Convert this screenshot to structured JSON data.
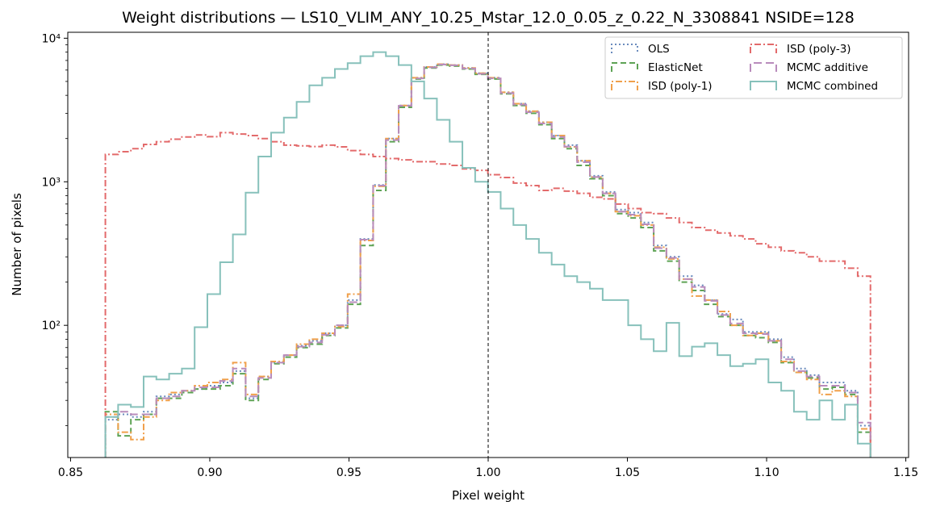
{
  "chart_data": {
    "type": "step-histogram",
    "title": "Weight distributions — LS10_VLIM_ANY_10.25_Mstar_12.0_0.05_z_0.22_N_3308841  NSIDE=128",
    "xlabel": "Pixel weight",
    "ylabel": "Number of pixels",
    "xlim": [
      0.849,
      1.151
    ],
    "ylim": [
      12,
      11000
    ],
    "yscale": "log",
    "xticks": [
      0.85,
      0.9,
      0.95,
      1.0,
      1.05,
      1.1,
      1.15
    ],
    "xtick_labels": [
      "0.85",
      "0.90",
      "0.95",
      "1.00",
      "1.05",
      "1.10",
      "1.15"
    ],
    "yticks": [
      100,
      1000,
      10000
    ],
    "ytick_labels": [
      "10²",
      "10³",
      "10⁴"
    ],
    "reference_line_x": 1.0,
    "bins": {
      "start": 0.8625,
      "width": 0.00458,
      "count": 60
    },
    "legend_position": "upper right",
    "legend_columns": 2,
    "series": [
      {
        "name": "OLS",
        "color": "#6a8bbd",
        "dash": "dotted",
        "values": [
          22,
          24,
          23,
          25,
          32,
          33,
          35,
          36,
          38,
          40,
          48,
          31,
          44,
          55,
          62,
          72,
          78,
          88,
          100,
          150,
          400,
          950,
          2000,
          3400,
          5300,
          6300,
          6600,
          6500,
          6200,
          5700,
          5300,
          4200,
          3500,
          3100,
          2600,
          2100,
          1800,
          1400,
          1100,
          850,
          640,
          610,
          520,
          360,
          300,
          220,
          190,
          150,
          120,
          110,
          90,
          90,
          80,
          60,
          50,
          45,
          40,
          40,
          35,
          20
        ]
      },
      {
        "name": "ElasticNet",
        "color": "#5ea355",
        "dash": "dashed",
        "values": [
          25,
          17,
          22,
          24,
          31,
          31,
          34,
          36,
          36,
          38,
          46,
          30,
          42,
          54,
          60,
          70,
          74,
          85,
          96,
          140,
          360,
          870,
          1900,
          3300,
          5200,
          6200,
          6500,
          6400,
          6100,
          5600,
          5200,
          4100,
          3400,
          3000,
          2500,
          2000,
          1700,
          1300,
          1050,
          800,
          600,
          560,
          480,
          330,
          280,
          200,
          175,
          140,
          115,
          100,
          85,
          82,
          76,
          55,
          47,
          43,
          36,
          37,
          33,
          18
        ]
      },
      {
        "name": "ISD (poly-1)",
        "color": "#f0a04b",
        "dash": "dashdot",
        "values": [
          24,
          18,
          16,
          23,
          30,
          34,
          35,
          38,
          40,
          42,
          55,
          33,
          44,
          56,
          62,
          74,
          80,
          88,
          98,
          165,
          390,
          930,
          2000,
          3400,
          5300,
          6300,
          6600,
          6500,
          6200,
          5700,
          5300,
          4200,
          3500,
          3100,
          2600,
          2100,
          1750,
          1400,
          1080,
          830,
          620,
          580,
          500,
          350,
          290,
          210,
          160,
          150,
          125,
          100,
          85,
          88,
          78,
          56,
          47,
          42,
          33,
          35,
          32,
          19
        ]
      },
      {
        "name": "ISD (poly-3)",
        "color": "#e36a6b",
        "dash": "dashdot",
        "values": [
          1550,
          1620,
          1700,
          1820,
          1900,
          1980,
          2050,
          2120,
          2060,
          2200,
          2150,
          2100,
          2000,
          1900,
          1800,
          1780,
          1760,
          1800,
          1750,
          1650,
          1550,
          1500,
          1450,
          1420,
          1380,
          1380,
          1330,
          1300,
          1230,
          1200,
          1120,
          1070,
          980,
          940,
          870,
          900,
          860,
          830,
          780,
          760,
          700,
          650,
          610,
          600,
          560,
          520,
          480,
          460,
          440,
          420,
          400,
          370,
          350,
          330,
          320,
          300,
          280,
          280,
          250,
          220
        ]
      },
      {
        "name": "MCMC additive",
        "color": "#b98cbc",
        "dash": "longdash",
        "values": [
          23,
          25,
          24,
          24,
          31,
          32,
          35,
          37,
          37,
          41,
          50,
          32,
          43,
          55,
          62,
          71,
          76,
          86,
          100,
          145,
          395,
          940,
          1950,
          3380,
          5250,
          6260,
          6550,
          6480,
          6150,
          5650,
          5250,
          4150,
          3450,
          3050,
          2550,
          2050,
          1760,
          1370,
          1080,
          830,
          620,
          590,
          505,
          345,
          295,
          210,
          185,
          148,
          118,
          103,
          88,
          87,
          78,
          58,
          48,
          44,
          38,
          38,
          34,
          21
        ]
      },
      {
        "name": "MCMC combined",
        "color": "#87c1bb",
        "dash": "solid",
        "values": [
          23,
          28,
          27,
          44,
          42,
          46,
          50,
          97,
          165,
          275,
          430,
          840,
          1500,
          2200,
          2800,
          3600,
          4700,
          5300,
          6100,
          6700,
          7500,
          8000,
          7500,
          6500,
          5000,
          3800,
          2700,
          1900,
          1250,
          1000,
          850,
          650,
          500,
          400,
          320,
          265,
          220,
          200,
          180,
          150,
          150,
          100,
          80,
          66,
          104,
          61,
          71,
          75,
          62,
          52,
          54,
          58,
          40,
          35,
          25,
          22,
          30,
          22,
          28,
          15
        ]
      }
    ]
  }
}
